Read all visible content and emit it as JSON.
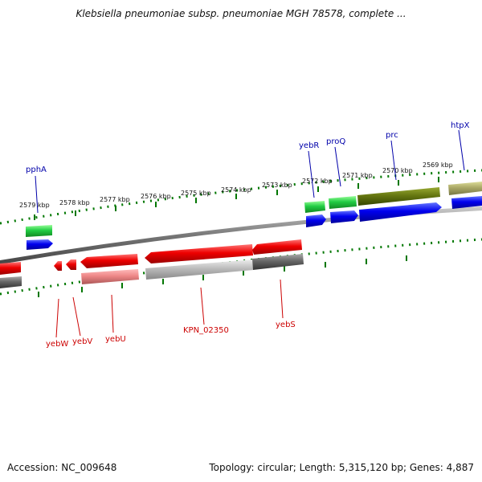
{
  "title": "Klebsiella pneumoniae subsp. pneumoniae MGH 78578, complete ...",
  "footer": {
    "accession": "Accession: NC_009648",
    "info": "Topology: circular; Length: 5,315,120 bp; Genes: 4,887"
  },
  "colors": {
    "top_cds": "#00cc33",
    "top_gene": "#0000ee",
    "bottom_cds": "#ee0000",
    "bottom_gene": "#666666",
    "olive_cds": "#667700",
    "khaki_cds": "#aaa866",
    "tick": "#007700",
    "top_label": "#0000aa",
    "bottom_label": "#cc0000",
    "backbone": "#888888"
  },
  "scale_labels": [
    "2579 kbp",
    "2578 kbp",
    "2577 kbp",
    "2576 kbp",
    "2575 kbp",
    "2574 kbp",
    "2573 kbp",
    "2572 kbp",
    "2571 kbp",
    "2570 kbp",
    "2569 kbp"
  ],
  "top_genes": [
    "pphA",
    "yebR",
    "proQ",
    "prc",
    "htpX"
  ],
  "bottom_genes": [
    "yebW",
    "yebV",
    "yebU",
    "KPN_02350",
    "yebS"
  ]
}
